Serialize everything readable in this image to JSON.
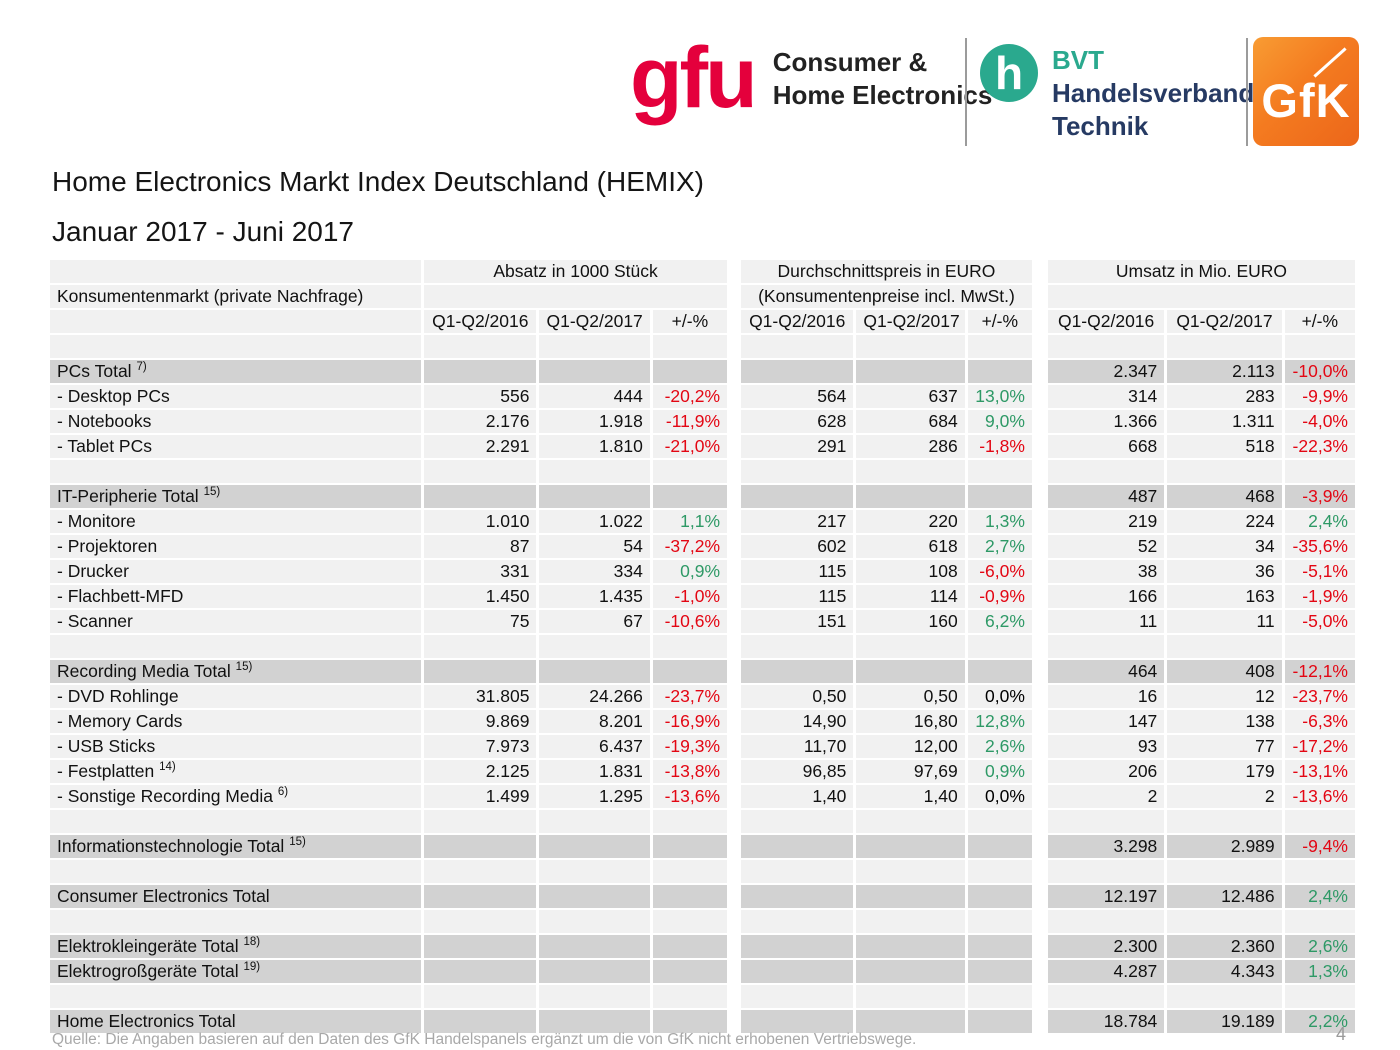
{
  "colors": {
    "negative": "#e30613",
    "positive": "#2e9966",
    "gfu_pink": "#e4003c",
    "bvt_teal": "#2aa98e",
    "bvt_navy": "#263a63",
    "gfk_orange": "#f47b20"
  },
  "logos": {
    "gfu_mark": "gfu",
    "gfu_sub_line1": "Consumer &",
    "gfu_sub_line2": "Home Electronics",
    "bvt_circle_letter": "h",
    "bvt_line1": "BVT",
    "bvt_line2": "Handelsverband",
    "bvt_line3": "Technik",
    "gfk_word": "GfK"
  },
  "header": {
    "title": "Home Electronics Markt Index Deutschland (HEMIX)",
    "subtitle": "Januar 2017 - Juni 2017"
  },
  "table": {
    "group_headers": [
      "Absatz in 1000 Stück",
      "Durchschnittspreis in EURO",
      "Umsatz in Mio. EURO"
    ],
    "label_header": "Konsumentenmarkt (private Nachfrage)",
    "price_subheader": "(Konsumentenpreise incl. MwSt.)",
    "col_headers": [
      "Q1-Q2/2016",
      "Q1-Q2/2017",
      "+/-%"
    ],
    "rows": [
      {
        "type": "blank",
        "label": "",
        "sup": "",
        "cells": [
          "",
          "",
          "",
          "",
          "",
          "",
          "",
          "",
          ""
        ]
      },
      {
        "type": "total",
        "label": "PCs Total ",
        "sup": "7)",
        "cells": [
          "",
          "",
          "",
          "",
          "",
          "",
          "2.347",
          "2.113",
          "-10,0%"
        ]
      },
      {
        "type": "item",
        "label": "- Desktop PCs",
        "sup": "",
        "cells": [
          "556",
          "444",
          "-20,2%",
          "564",
          "637",
          "13,0%",
          "314",
          "283",
          "-9,9%"
        ]
      },
      {
        "type": "item",
        "label": "- Notebooks",
        "sup": "",
        "cells": [
          "2.176",
          "1.918",
          "-11,9%",
          "628",
          "684",
          "9,0%",
          "1.366",
          "1.311",
          "-4,0%"
        ]
      },
      {
        "type": "item",
        "label": "- Tablet PCs",
        "sup": "",
        "cells": [
          "2.291",
          "1.810",
          "-21,0%",
          "291",
          "286",
          "-1,8%",
          "668",
          "518",
          "-22,3%"
        ]
      },
      {
        "type": "blank",
        "label": "",
        "sup": "",
        "cells": [
          "",
          "",
          "",
          "",
          "",
          "",
          "",
          "",
          ""
        ]
      },
      {
        "type": "total",
        "label": "IT-Peripherie Total ",
        "sup": "15)",
        "cells": [
          "",
          "",
          "",
          "",
          "",
          "",
          "487",
          "468",
          "-3,9%"
        ]
      },
      {
        "type": "item",
        "label": "- Monitore",
        "sup": "",
        "cells": [
          "1.010",
          "1.022",
          "1,1%",
          "217",
          "220",
          "1,3%",
          "219",
          "224",
          "2,4%"
        ]
      },
      {
        "type": "item",
        "label": "- Projektoren",
        "sup": "",
        "cells": [
          "87",
          "54",
          "-37,2%",
          "602",
          "618",
          "2,7%",
          "52",
          "34",
          "-35,6%"
        ]
      },
      {
        "type": "item",
        "label": "- Drucker",
        "sup": "",
        "cells": [
          "331",
          "334",
          "0,9%",
          "115",
          "108",
          "-6,0%",
          "38",
          "36",
          "-5,1%"
        ]
      },
      {
        "type": "item",
        "label": "- Flachbett-MFD",
        "sup": "",
        "cells": [
          "1.450",
          "1.435",
          "-1,0%",
          "115",
          "114",
          "-0,9%",
          "166",
          "163",
          "-1,9%"
        ]
      },
      {
        "type": "item",
        "label": "- Scanner",
        "sup": "",
        "cells": [
          "75",
          "67",
          "-10,6%",
          "151",
          "160",
          "6,2%",
          "11",
          "11",
          "-5,0%"
        ]
      },
      {
        "type": "blank",
        "label": "",
        "sup": "",
        "cells": [
          "",
          "",
          "",
          "",
          "",
          "",
          "",
          "",
          ""
        ]
      },
      {
        "type": "total",
        "label": "Recording Media Total ",
        "sup": "15)",
        "cells": [
          "",
          "",
          "",
          "",
          "",
          "",
          "464",
          "408",
          "-12,1%"
        ]
      },
      {
        "type": "item",
        "label": "- DVD Rohlinge",
        "sup": "",
        "cells": [
          "31.805",
          "24.266",
          "-23,7%",
          "0,50",
          "0,50",
          "0,0%",
          "16",
          "12",
          "-23,7%"
        ]
      },
      {
        "type": "item",
        "label": "- Memory Cards",
        "sup": "",
        "cells": [
          "9.869",
          "8.201",
          "-16,9%",
          "14,90",
          "16,80",
          "12,8%",
          "147",
          "138",
          "-6,3%"
        ]
      },
      {
        "type": "item",
        "label": "- USB Sticks",
        "sup": "",
        "cells": [
          "7.973",
          "6.437",
          "-19,3%",
          "11,70",
          "12,00",
          "2,6%",
          "93",
          "77",
          "-17,2%"
        ]
      },
      {
        "type": "item",
        "label": "- Festplatten ",
        "sup": "14)",
        "cells": [
          "2.125",
          "1.831",
          "-13,8%",
          "96,85",
          "97,69",
          "0,9%",
          "206",
          "179",
          "-13,1%"
        ]
      },
      {
        "type": "item",
        "label": "- Sonstige Recording Media ",
        "sup": "6)",
        "cells": [
          "1.499",
          "1.295",
          "-13,6%",
          "1,40",
          "1,40",
          "0,0%",
          "2",
          "2",
          "-13,6%"
        ]
      },
      {
        "type": "blank",
        "label": "",
        "sup": "",
        "cells": [
          "",
          "",
          "",
          "",
          "",
          "",
          "",
          "",
          ""
        ]
      },
      {
        "type": "total",
        "label": "Informationstechnologie Total ",
        "sup": "15)",
        "cells": [
          "",
          "",
          "",
          "",
          "",
          "",
          "3.298",
          "2.989",
          "-9,4%"
        ]
      },
      {
        "type": "blank",
        "label": "",
        "sup": "",
        "cells": [
          "",
          "",
          "",
          "",
          "",
          "",
          "",
          "",
          ""
        ]
      },
      {
        "type": "total",
        "label": "Consumer Electronics Total",
        "sup": "",
        "cells": [
          "",
          "",
          "",
          "",
          "",
          "",
          "12.197",
          "12.486",
          "2,4%"
        ]
      },
      {
        "type": "blank",
        "label": "",
        "sup": "",
        "cells": [
          "",
          "",
          "",
          "",
          "",
          "",
          "",
          "",
          ""
        ]
      },
      {
        "type": "total",
        "label": "Elektrokleingeräte Total ",
        "sup": "18)",
        "cells": [
          "",
          "",
          "",
          "",
          "",
          "",
          "2.300",
          "2.360",
          "2,6%"
        ]
      },
      {
        "type": "total",
        "label": "Elektrogroßgeräte Total ",
        "sup": "19)",
        "cells": [
          "",
          "",
          "",
          "",
          "",
          "",
          "4.287",
          "4.343",
          "1,3%"
        ]
      },
      {
        "type": "blank",
        "label": "",
        "sup": "",
        "cells": [
          "",
          "",
          "",
          "",
          "",
          "",
          "",
          "",
          ""
        ]
      },
      {
        "type": "total",
        "label": "Home Electronics Total",
        "sup": "",
        "cells": [
          "",
          "",
          "",
          "",
          "",
          "",
          "18.784",
          "19.189",
          "2,2%"
        ]
      }
    ]
  },
  "footer": {
    "source": "Quelle: Die Angaben basieren auf den Daten des GfK Handelspanels ergänzt um die von GfK nicht erhobenen Vertriebswege.",
    "page_number": "4"
  }
}
